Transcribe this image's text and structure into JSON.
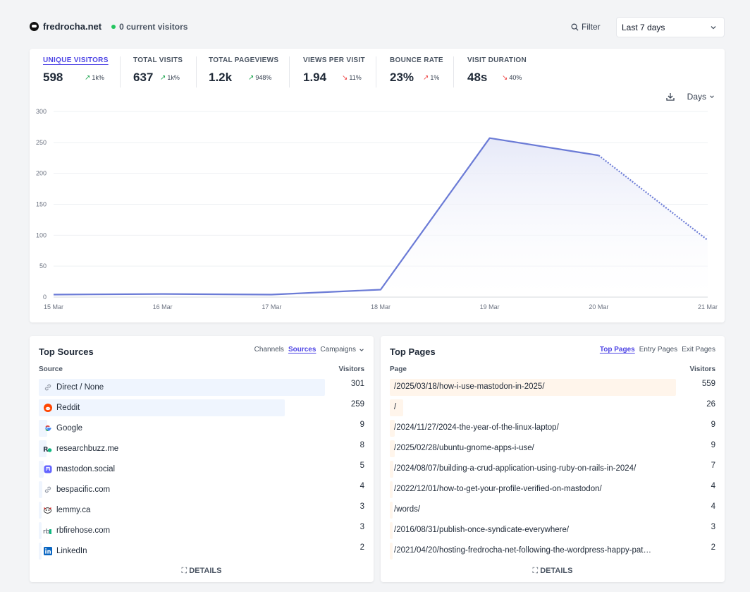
{
  "header": {
    "site_name": "fredrocha.net",
    "visitors_live": "0 current visitors",
    "filter_label": "Filter",
    "period_label": "Last 7 days"
  },
  "metrics": [
    {
      "label": "UNIQUE VISITORS",
      "value": "598",
      "change": "1k%",
      "direction": "up"
    },
    {
      "label": "TOTAL VISITS",
      "value": "637",
      "change": "1k%",
      "direction": "up"
    },
    {
      "label": "TOTAL PAGEVIEWS",
      "value": "1.2k",
      "change": "948%",
      "direction": "up"
    },
    {
      "label": "VIEWS PER VISIT",
      "value": "1.94",
      "change": "11%",
      "direction": "down"
    },
    {
      "label": "BOUNCE RATE",
      "value": "23%",
      "change": "1%",
      "direction": "up"
    },
    {
      "label": "VISIT DURATION",
      "value": "48s",
      "change": "40%",
      "direction": "down"
    }
  ],
  "chart_tools": {
    "interval_label": "Days"
  },
  "chart_data": {
    "type": "area",
    "categories": [
      "15 Mar",
      "16 Mar",
      "17 Mar",
      "18 Mar",
      "19 Mar",
      "20 Mar",
      "21 Mar"
    ],
    "values": [
      4,
      5,
      4,
      12,
      257,
      229,
      92
    ],
    "ylim": [
      0,
      300
    ],
    "yticks": [
      0,
      50,
      100,
      150,
      200,
      250,
      300
    ],
    "partial_from_index": 5,
    "grid": true,
    "colors": {
      "line": "#6b7bd6",
      "fill": "#e6e9f8"
    }
  },
  "sources": {
    "title": "Top Sources",
    "tabs": [
      "Channels",
      "Sources",
      "Campaigns"
    ],
    "active_tab": "Sources",
    "col_label": "Source",
    "col_value": "Visitors",
    "rows": [
      {
        "label": "Direct / None",
        "value": "301",
        "num": 301,
        "icon": "link-icon"
      },
      {
        "label": "Reddit",
        "value": "259",
        "num": 259,
        "icon": "reddit-icon"
      },
      {
        "label": "Google",
        "value": "9",
        "num": 9,
        "icon": "google-icon"
      },
      {
        "label": "researchbuzz.me",
        "value": "8",
        "num": 8,
        "icon": "researchbuzz-icon"
      },
      {
        "label": "mastodon.social",
        "value": "5",
        "num": 5,
        "icon": "mastodon-icon"
      },
      {
        "label": "bespacific.com",
        "value": "4",
        "num": 4,
        "icon": "link-icon"
      },
      {
        "label": "lemmy.ca",
        "value": "3",
        "num": 3,
        "icon": "lemmy-icon"
      },
      {
        "label": "rbfirehose.com",
        "value": "3",
        "num": 3,
        "icon": "rbfirehose-icon"
      },
      {
        "label": "LinkedIn",
        "value": "2",
        "num": 2,
        "icon": "linkedin-icon"
      }
    ],
    "details_label": "DETAILS"
  },
  "pages": {
    "title": "Top Pages",
    "tabs": [
      "Top Pages",
      "Entry Pages",
      "Exit Pages"
    ],
    "active_tab": "Top Pages",
    "col_label": "Page",
    "col_value": "Visitors",
    "rows": [
      {
        "label": "/2025/03/18/how-i-use-mastodon-in-2025/",
        "value": "559",
        "num": 559
      },
      {
        "label": "/",
        "value": "26",
        "num": 26
      },
      {
        "label": "/2024/11/27/2024-the-year-of-the-linux-laptop/",
        "value": "9",
        "num": 9
      },
      {
        "label": "/2025/02/28/ubuntu-gnome-apps-i-use/",
        "value": "9",
        "num": 9
      },
      {
        "label": "/2024/08/07/building-a-crud-application-using-ruby-on-rails-in-2024/",
        "value": "7",
        "num": 7
      },
      {
        "label": "/2022/12/01/how-to-get-your-profile-verified-on-mastodon/",
        "value": "4",
        "num": 4
      },
      {
        "label": "/words/",
        "value": "4",
        "num": 4
      },
      {
        "label": "/2016/08/31/publish-once-syndicate-everywhere/",
        "value": "3",
        "num": 3
      },
      {
        "label": "/2021/04/20/hosting-fredrocha-net-following-the-wordpress-happy-pat…",
        "value": "2",
        "num": 2
      }
    ],
    "details_label": "DETAILS"
  }
}
